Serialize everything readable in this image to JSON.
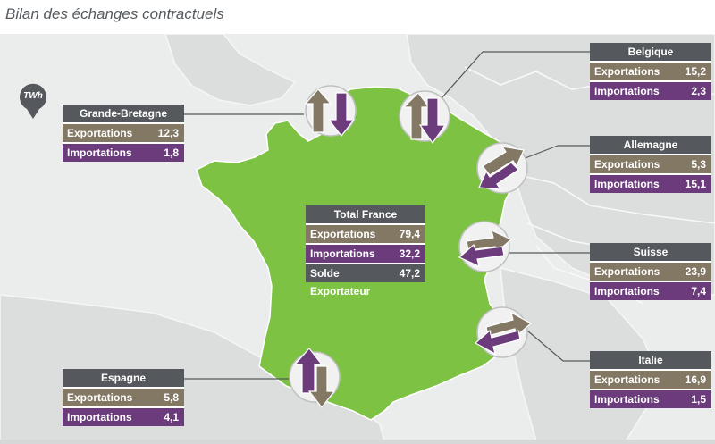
{
  "title": "Bilan des échanges contractuels",
  "unit": "TWh",
  "total": {
    "name": "Total France",
    "exp_label": "Exportations",
    "exp_value": "79,4",
    "imp_label": "Importations",
    "imp_value": "32,2",
    "solde_label": "Solde Exportateur",
    "solde_value": "47,2"
  },
  "countries": [
    {
      "name": "Grande-Bretagne",
      "exp_label": "Exportations",
      "exp_value": "12,3",
      "imp_label": "Importations",
      "imp_value": "1,8"
    },
    {
      "name": "Belgique",
      "exp_label": "Exportations",
      "exp_value": "15,2",
      "imp_label": "Importations",
      "imp_value": "2,3"
    },
    {
      "name": "Allemagne",
      "exp_label": "Exportations",
      "exp_value": "5,3",
      "imp_label": "Importations",
      "imp_value": "15,1"
    },
    {
      "name": "Suisse",
      "exp_label": "Exportations",
      "exp_value": "23,9",
      "imp_label": "Importations",
      "imp_value": "7,4"
    },
    {
      "name": "Italie",
      "exp_label": "Exportations",
      "exp_value": "16,9",
      "imp_label": "Importations",
      "imp_value": "1,5"
    },
    {
      "name": "Espagne",
      "exp_label": "Exportations",
      "exp_value": "5,8",
      "imp_label": "Importations",
      "imp_value": "4,1"
    }
  ],
  "colors": {
    "france": "#7dc242",
    "exports": "#837863",
    "imports": "#6b3b7c",
    "header": "#55585c",
    "background": "#ebecec"
  }
}
